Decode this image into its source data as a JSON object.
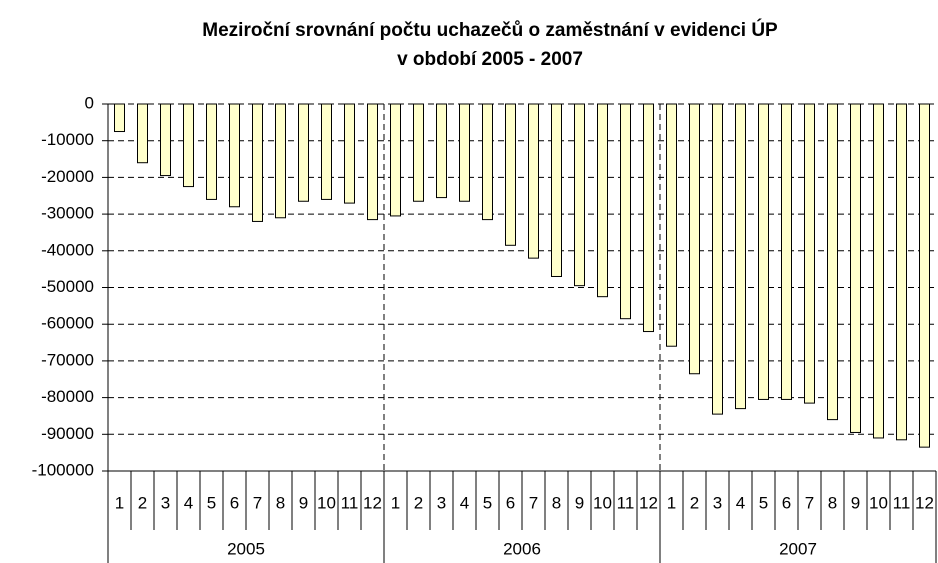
{
  "chart_data": {
    "type": "bar",
    "title": [
      "Meziroční srovnání počtu uchazečů o zaměstnání v evidenci ÚP",
      "v období 2005 - 2007"
    ],
    "categories": [
      "1",
      "2",
      "3",
      "4",
      "5",
      "6",
      "7",
      "8",
      "9",
      "10",
      "11",
      "12",
      "1",
      "2",
      "3",
      "4",
      "5",
      "6",
      "7",
      "8",
      "9",
      "10",
      "11",
      "12",
      "1",
      "2",
      "3",
      "4",
      "5",
      "6",
      "7",
      "8",
      "9",
      "10",
      "11",
      "12"
    ],
    "groups": [
      "2005",
      "2006",
      "2007"
    ],
    "values": [
      -7500,
      -16000,
      -19500,
      -22500,
      -26000,
      -28000,
      -32000,
      -31000,
      -26500,
      -26000,
      -27000,
      -31500,
      -30500,
      -26500,
      -25500,
      -26500,
      -31500,
      -38500,
      -42000,
      -47000,
      -49500,
      -52500,
      -58500,
      -62000,
      -66000,
      -73500,
      -84500,
      -83000,
      -80500,
      -80500,
      -81500,
      -86000,
      -89500,
      -91000,
      -91500,
      -93500
    ],
    "color": "#ffffcc",
    "ylim": [
      -100000,
      0
    ],
    "yticks": [
      0,
      -10000,
      -20000,
      -30000,
      -40000,
      -50000,
      -60000,
      -70000,
      -80000,
      -90000,
      -100000
    ],
    "grid": true
  }
}
